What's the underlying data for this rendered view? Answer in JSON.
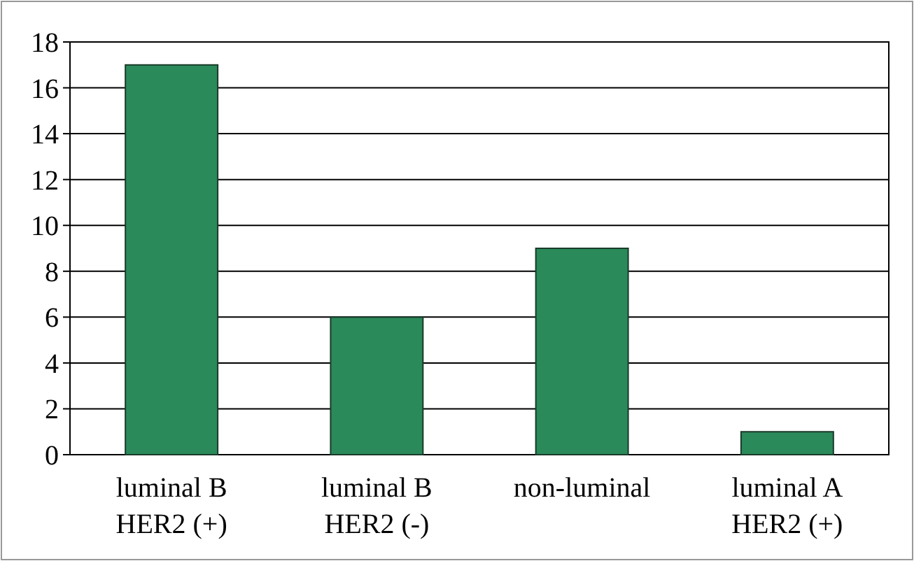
{
  "chart_data": {
    "type": "bar",
    "categories": [
      "luminal B\nHER2 (+)",
      "luminal B\nHER2 (-)",
      "non-luminal",
      "luminal A\nHER2 (+)"
    ],
    "values": [
      17,
      6,
      9,
      1
    ],
    "color": "#2a8a5a",
    "ylim": [
      0,
      18
    ],
    "yticks": [
      0,
      2,
      4,
      6,
      8,
      10,
      12,
      14,
      16,
      18
    ],
    "grid": "y"
  }
}
